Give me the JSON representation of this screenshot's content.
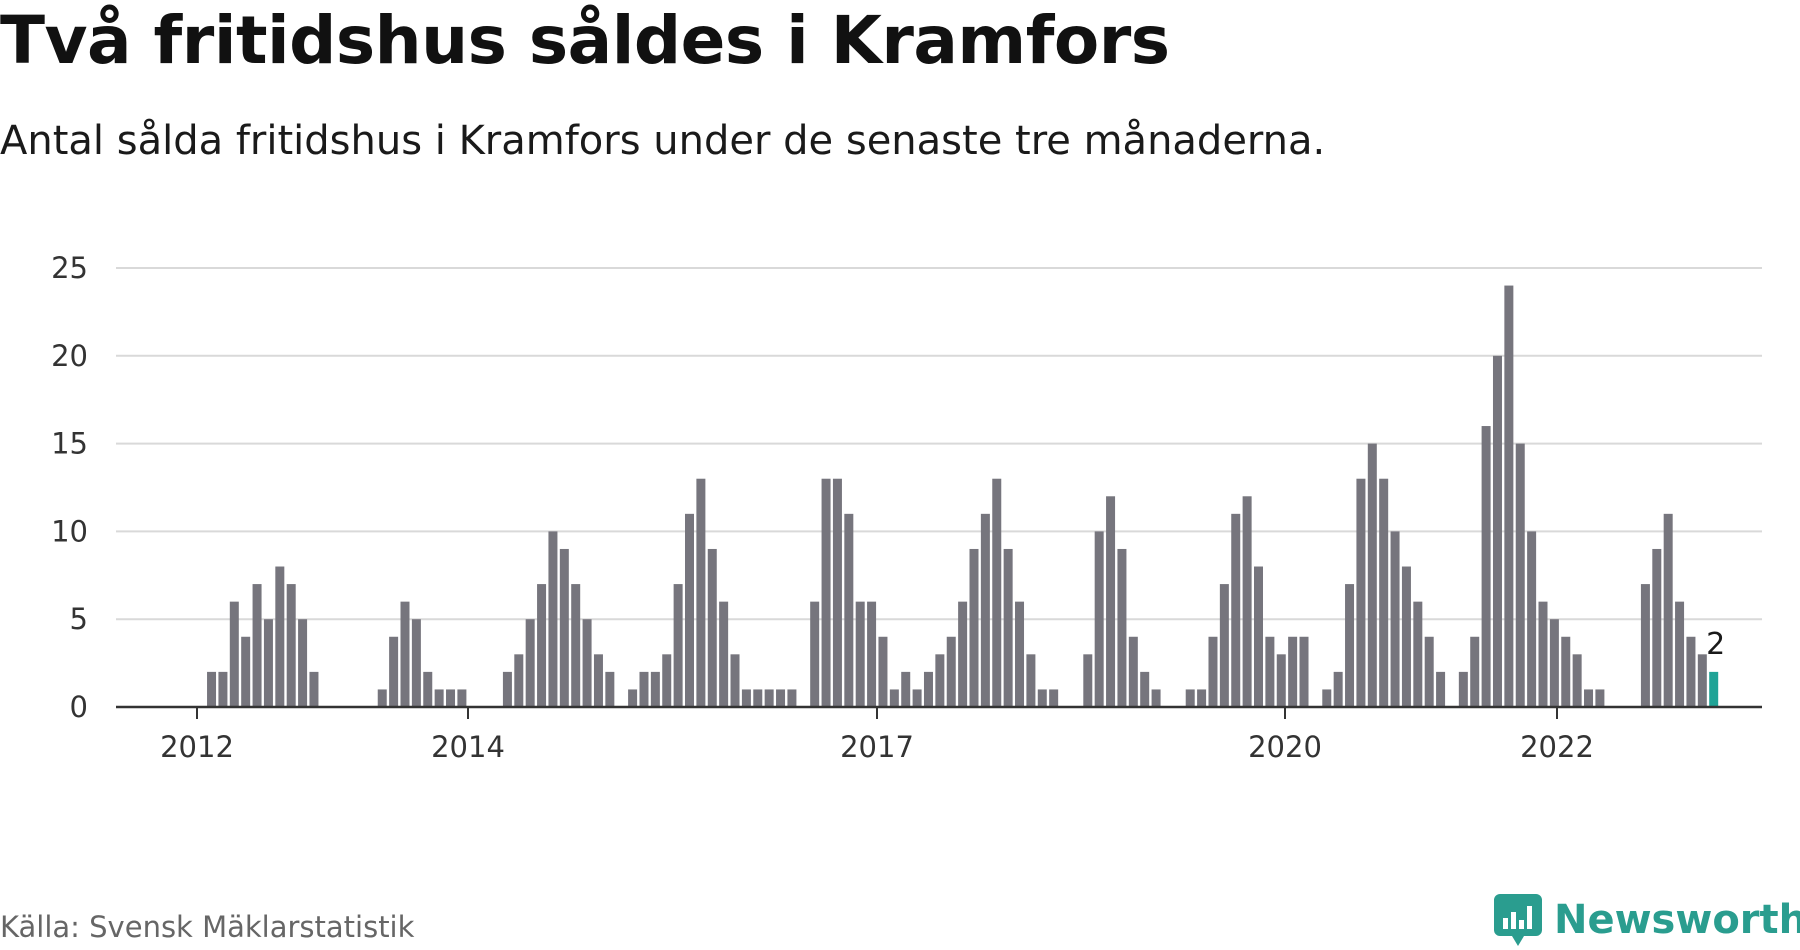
{
  "header": {
    "title": "Två fritidshus såldes i Kramfors",
    "subtitle": "Antal sålda fritidshus i Kramfors under de senaste tre månaderna."
  },
  "footer": {
    "source": "Källa: Svensk Mäklarstatistik",
    "brand": "Newsworthy"
  },
  "colors": {
    "bar": "#76757d",
    "highlight": "#1fa396",
    "grid": "#d9d9d9",
    "axis": "#333333",
    "brand": "#2a9d8f"
  },
  "chart_data": {
    "type": "bar",
    "title": "Två fritidshus såldes i Kramfors",
    "subtitle": "Antal sålda fritidshus i Kramfors under de senaste tre månaderna.",
    "x_tick_labels": [
      "2012",
      "2014",
      "2017",
      "2020",
      "2022"
    ],
    "y_tick_labels": [
      "0",
      "5",
      "10",
      "15",
      "20",
      "25"
    ],
    "ylim": [
      0,
      25
    ],
    "grid": true,
    "highlight_label": "2",
    "values": [
      0,
      0,
      0,
      0,
      0,
      0,
      0,
      0,
      2,
      2,
      6,
      4,
      7,
      5,
      8,
      7,
      5,
      2,
      0,
      0,
      0,
      0,
      0,
      1,
      4,
      6,
      5,
      2,
      1,
      1,
      1,
      0,
      0,
      0,
      2,
      3,
      5,
      7,
      10,
      9,
      7,
      5,
      3,
      2,
      0,
      1,
      2,
      2,
      3,
      7,
      11,
      13,
      9,
      6,
      3,
      1,
      1,
      1,
      1,
      1,
      0,
      6,
      13,
      13,
      11,
      6,
      6,
      4,
      1,
      2,
      1,
      2,
      3,
      4,
      6,
      9,
      11,
      13,
      9,
      6,
      3,
      1,
      1,
      0,
      0,
      3,
      10,
      12,
      9,
      4,
      2,
      1,
      0,
      0,
      1,
      1,
      4,
      7,
      11,
      12,
      8,
      4,
      3,
      4,
      4,
      0,
      1,
      2,
      7,
      13,
      15,
      13,
      10,
      8,
      6,
      4,
      2,
      0,
      2,
      4,
      16,
      20,
      24,
      15,
      10,
      6,
      5,
      4,
      3,
      1,
      1,
      0,
      0,
      0,
      7,
      9,
      11,
      6,
      4,
      3,
      2
    ]
  }
}
